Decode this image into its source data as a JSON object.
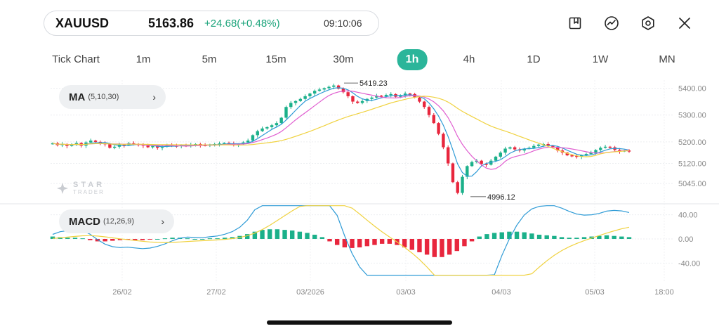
{
  "symbol_bar": {
    "symbol": "XAUUSD",
    "price": "5163.86",
    "change": "+24.68(+0.48%)",
    "time": "09:10:06",
    "change_color": "#1aa37a"
  },
  "top_icons": [
    "bookmark-icon",
    "indicator-icon",
    "settings-icon",
    "close-icon"
  ],
  "timeframes": [
    {
      "label": "Tick Chart",
      "active": false
    },
    {
      "label": "1m",
      "active": false
    },
    {
      "label": "5m",
      "active": false
    },
    {
      "label": "15m",
      "active": false
    },
    {
      "label": "30m",
      "active": false
    },
    {
      "label": "1h",
      "active": true
    },
    {
      "label": "4h",
      "active": false
    },
    {
      "label": "1D",
      "active": false
    },
    {
      "label": "1W",
      "active": false
    },
    {
      "label": "MN",
      "active": false
    }
  ],
  "indicators": {
    "ma": {
      "name": "MA",
      "params": "(5,10,30)"
    },
    "macd": {
      "name": "MACD",
      "params": "(12,26,9)"
    }
  },
  "watermark": {
    "brand": "STAR",
    "sub": "TRADER"
  },
  "colors": {
    "up": "#1bb08a",
    "down": "#e8263d",
    "ma5": "#2e9bd6",
    "ma10": "#e05ed0",
    "ma30": "#f0d240",
    "accent": "#2bb59a"
  },
  "chart_data": {
    "type": "candlestick",
    "symbol": "XAUUSD",
    "timeframe": "1h",
    "price_axis_labels": [
      "5400.00",
      "5300.00",
      "5200.00",
      "5120.00",
      "5045.00"
    ],
    "macd_axis_labels": [
      "40.00",
      "0.00",
      "-40.00"
    ],
    "time_labels": [
      "26/02",
      "27/02",
      "03/2026",
      "03/03",
      "04/03",
      "05/03",
      "18:00"
    ],
    "annotations": {
      "high": "5419.23",
      "low": "4996.12"
    },
    "ohlc_close_path": [
      5195,
      5188,
      5192,
      5185,
      5190,
      5196,
      5186,
      5198,
      5205,
      5200,
      5195,
      5192,
      5178,
      5182,
      5190,
      5188,
      5195,
      5192,
      5190,
      5186,
      5180,
      5185,
      5178,
      5182,
      5190,
      5186,
      5185,
      5188,
      5184,
      5190,
      5192,
      5188,
      5186,
      5190,
      5192,
      5194,
      5196,
      5194,
      5190,
      5192,
      5198,
      5205,
      5225,
      5240,
      5250,
      5255,
      5262,
      5270,
      5290,
      5330,
      5345,
      5352,
      5360,
      5370,
      5380,
      5390,
      5395,
      5400,
      5405,
      5410,
      5398,
      5385,
      5370,
      5350,
      5345,
      5352,
      5360,
      5365,
      5372,
      5370,
      5375,
      5378,
      5368,
      5372,
      5380,
      5378,
      5365,
      5350,
      5330,
      5300,
      5270,
      5230,
      5180,
      5120,
      5050,
      5010,
      5070,
      5110,
      5125,
      5130,
      5118,
      5115,
      5130,
      5145,
      5160,
      5175,
      5180,
      5172,
      5168,
      5175,
      5178,
      5185,
      5190,
      5192,
      5186,
      5180,
      5168,
      5160,
      5150,
      5148,
      5145,
      5150,
      5155,
      5160,
      5170,
      5178,
      5182,
      5180,
      5170,
      5165,
      5168,
      5164
    ],
    "macd_histogram_path": [
      4,
      3,
      2,
      2,
      1,
      -2,
      -4,
      -4,
      -3,
      -2,
      -1,
      -2,
      -2,
      -1,
      0,
      1,
      2,
      2,
      1,
      0,
      0,
      1,
      1,
      2,
      3,
      5,
      8,
      12,
      15,
      16,
      16,
      15,
      14,
      12,
      10,
      7,
      3,
      -4,
      -10,
      -14,
      -15,
      -14,
      -12,
      -10,
      -8,
      -8,
      -10,
      -14,
      -18,
      -22,
      -26,
      -30,
      -30,
      -26,
      -20,
      -12,
      -4,
      4,
      8,
      10,
      11,
      12,
      12,
      11,
      9,
      7,
      6,
      5,
      3,
      2,
      2,
      3,
      4,
      5,
      6,
      5,
      4,
      3
    ],
    "y_min": 4980,
    "y_max": 5430
  }
}
